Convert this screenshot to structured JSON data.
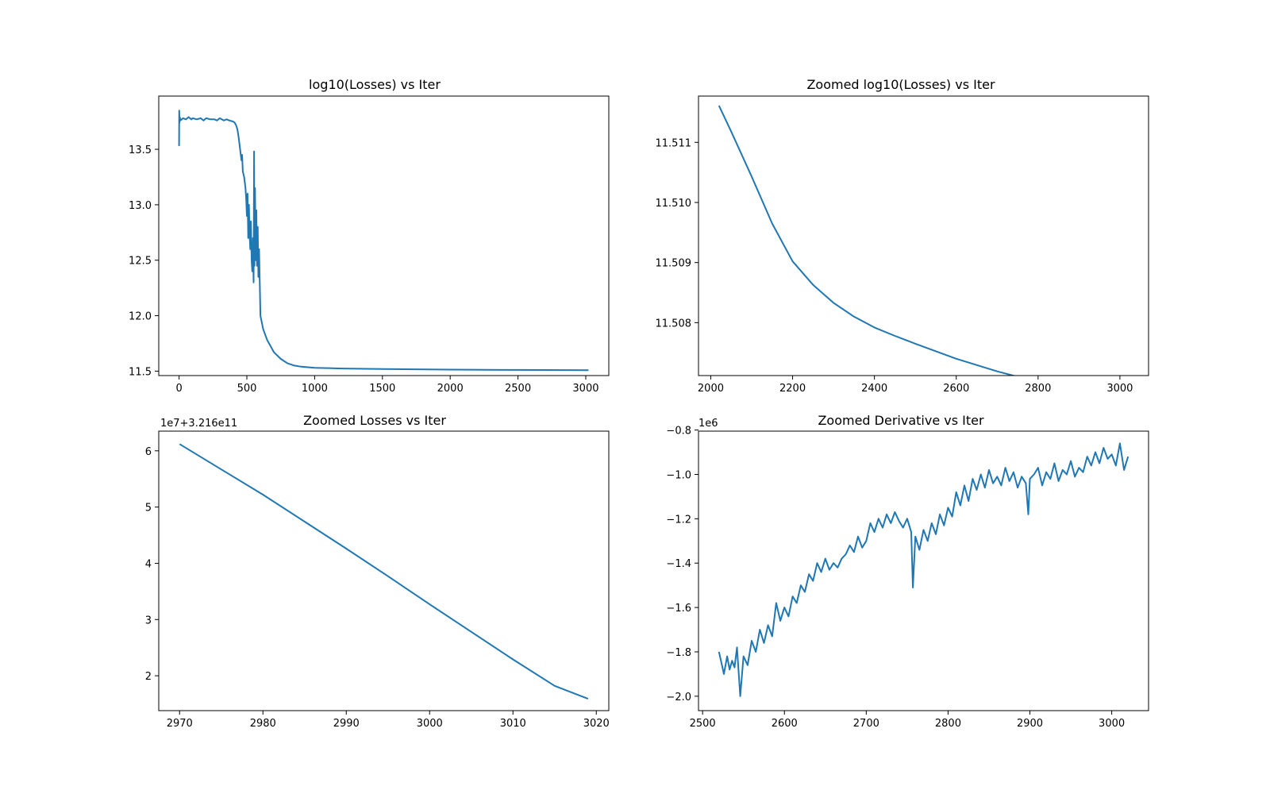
{
  "chart_data": [
    {
      "type": "line",
      "title": "log10(Losses) vs Iter",
      "xlabel": "",
      "ylabel": "",
      "offset_label": "",
      "xlim": [
        -150,
        3170
      ],
      "ylim": [
        11.46,
        13.98
      ],
      "xticks": [
        0,
        500,
        1000,
        1500,
        2000,
        2500,
        3000
      ],
      "xtick_labels": [
        "0",
        "500",
        "1000",
        "1500",
        "2000",
        "2500",
        "3000"
      ],
      "yticks": [
        11.5,
        12.0,
        12.5,
        13.0,
        13.5
      ],
      "ytick_labels": [
        "11.5",
        "12.0",
        "12.5",
        "13.0",
        "13.5"
      ],
      "series": [
        {
          "color": "#1f77b4",
          "x": [
            0,
            1,
            3,
            5,
            10,
            20,
            30,
            50,
            70,
            90,
            100,
            130,
            160,
            180,
            200,
            230,
            260,
            280,
            300,
            330,
            350,
            370,
            400,
            410,
            420,
            430,
            440,
            450,
            460,
            465,
            470,
            480,
            490,
            495,
            500,
            505,
            510,
            515,
            520,
            525,
            530,
            535,
            540,
            545,
            550,
            553,
            556,
            560,
            565,
            570,
            575,
            580,
            585,
            590,
            600,
            620,
            650,
            700,
            750,
            800,
            850,
            900,
            1000,
            1100,
            1200,
            1500,
            2000,
            2500,
            3020
          ],
          "y": [
            13.53,
            13.85,
            13.74,
            13.79,
            13.76,
            13.77,
            13.78,
            13.77,
            13.79,
            13.77,
            13.78,
            13.77,
            13.78,
            13.76,
            13.78,
            13.77,
            13.77,
            13.76,
            13.78,
            13.76,
            13.77,
            13.76,
            13.75,
            13.74,
            13.72,
            13.68,
            13.6,
            13.5,
            13.4,
            13.45,
            13.3,
            13.25,
            13.15,
            13.05,
            12.9,
            13.1,
            12.7,
            13.0,
            12.75,
            12.6,
            12.85,
            12.5,
            12.4,
            12.7,
            12.3,
            13.48,
            12.45,
            13.15,
            12.5,
            12.95,
            12.45,
            12.8,
            12.35,
            12.6,
            12.0,
            11.88,
            11.78,
            11.67,
            11.61,
            11.57,
            11.55,
            11.54,
            11.53,
            11.527,
            11.524,
            11.519,
            11.514,
            11.511,
            11.508
          ]
        }
      ]
    },
    {
      "type": "line",
      "title": "Zoomed log10(Losses) vs Iter",
      "xlabel": "",
      "ylabel": "",
      "offset_label": "",
      "xlim": [
        1970,
        3070
      ],
      "ylim": [
        11.50712,
        11.51177
      ],
      "xticks": [
        2000,
        2200,
        2400,
        2600,
        2800,
        3000
      ],
      "xtick_labels": [
        "2000",
        "2200",
        "2400",
        "2600",
        "2800",
        "3000"
      ],
      "yticks": [
        11.508,
        11.509,
        11.51,
        11.511
      ],
      "ytick_labels": [
        "11.508",
        "11.509",
        "11.510",
        "11.511"
      ],
      "series": [
        {
          "color": "#1f77b4",
          "x": [
            2020,
            2050,
            2100,
            2150,
            2200,
            2250,
            2300,
            2350,
            2400,
            2450,
            2500,
            2600,
            2700,
            2800,
            2900,
            3020
          ],
          "y": [
            11.51161,
            11.51118,
            11.51043,
            11.50965,
            11.50902,
            11.50863,
            11.50833,
            11.5081,
            11.50792,
            11.50778,
            11.50765,
            11.5074,
            11.50719,
            11.50701,
            11.50684,
            11.50664
          ]
        }
      ]
    },
    {
      "type": "line",
      "title": "Zoomed Losses vs Iter",
      "xlabel": "",
      "ylabel": "",
      "offset_label": "1e7+3.216e11",
      "xlim": [
        2967.5,
        3021.5
      ],
      "ylim": [
        1.38,
        6.35
      ],
      "xticks": [
        2970,
        2980,
        2990,
        3000,
        3010,
        3020
      ],
      "xtick_labels": [
        "2970",
        "2980",
        "2990",
        "3000",
        "3010",
        "3020"
      ],
      "yticks": [
        2,
        3,
        4,
        5,
        6
      ],
      "ytick_labels": [
        "2",
        "3",
        "4",
        "5",
        "6"
      ],
      "series": [
        {
          "color": "#1f77b4",
          "x": [
            2970,
            2975,
            2980,
            2985,
            2990,
            2995,
            3000,
            3005,
            3010,
            3015,
            3019
          ],
          "y": [
            6.12,
            5.67,
            5.22,
            4.74,
            4.26,
            3.77,
            3.27,
            2.78,
            2.29,
            1.82,
            1.59
          ]
        }
      ]
    },
    {
      "type": "line",
      "title": "Zoomed Derivative vs Iter",
      "xlabel": "",
      "ylabel": "",
      "offset_label": "1e6",
      "xlim": [
        2495,
        3045
      ],
      "ylim": [
        -2.065,
        -0.805
      ],
      "xticks": [
        2500,
        2600,
        2700,
        2800,
        2900,
        3000
      ],
      "xtick_labels": [
        "2500",
        "2600",
        "2700",
        "2800",
        "2900",
        "3000"
      ],
      "yticks": [
        -2.0,
        -1.8,
        -1.6,
        -1.4,
        -1.2,
        -1.0,
        -0.8
      ],
      "ytick_labels": [
        "−2.0",
        "−1.8",
        "−1.6",
        "−1.4",
        "−1.2",
        "−1.0",
        "−0.8"
      ],
      "series": [
        {
          "color": "#1f77b4",
          "x": [
            2520,
            2523,
            2526,
            2530,
            2533,
            2536,
            2539,
            2542,
            2546,
            2550,
            2555,
            2560,
            2565,
            2570,
            2575,
            2580,
            2585,
            2590,
            2595,
            2600,
            2605,
            2610,
            2615,
            2620,
            2625,
            2630,
            2635,
            2640,
            2645,
            2650,
            2655,
            2660,
            2665,
            2670,
            2675,
            2680,
            2685,
            2690,
            2695,
            2700,
            2705,
            2710,
            2715,
            2720,
            2725,
            2730,
            2735,
            2740,
            2745,
            2750,
            2755,
            2757,
            2760,
            2765,
            2770,
            2775,
            2780,
            2785,
            2790,
            2795,
            2800,
            2805,
            2810,
            2815,
            2820,
            2825,
            2830,
            2835,
            2840,
            2845,
            2850,
            2855,
            2860,
            2865,
            2870,
            2875,
            2880,
            2885,
            2890,
            2895,
            2898,
            2900,
            2905,
            2910,
            2915,
            2920,
            2925,
            2930,
            2935,
            2940,
            2945,
            2950,
            2955,
            2960,
            2965,
            2970,
            2975,
            2980,
            2985,
            2990,
            2995,
            3000,
            3005,
            3010,
            3015,
            3020
          ],
          "y": [
            -1.8,
            -1.85,
            -1.9,
            -1.82,
            -1.88,
            -1.84,
            -1.87,
            -1.78,
            -2.0,
            -1.82,
            -1.86,
            -1.75,
            -1.8,
            -1.7,
            -1.76,
            -1.68,
            -1.73,
            -1.58,
            -1.66,
            -1.6,
            -1.64,
            -1.55,
            -1.58,
            -1.5,
            -1.53,
            -1.45,
            -1.48,
            -1.4,
            -1.44,
            -1.38,
            -1.43,
            -1.4,
            -1.42,
            -1.38,
            -1.36,
            -1.32,
            -1.35,
            -1.28,
            -1.33,
            -1.3,
            -1.22,
            -1.26,
            -1.2,
            -1.24,
            -1.18,
            -1.22,
            -1.17,
            -1.21,
            -1.24,
            -1.2,
            -1.26,
            -1.51,
            -1.28,
            -1.34,
            -1.25,
            -1.3,
            -1.22,
            -1.27,
            -1.18,
            -1.23,
            -1.15,
            -1.19,
            -1.08,
            -1.14,
            -1.05,
            -1.12,
            -1.02,
            -1.07,
            -1.0,
            -1.06,
            -0.98,
            -1.04,
            -1.01,
            -1.05,
            -0.97,
            -1.03,
            -0.99,
            -1.06,
            -1.01,
            -1.04,
            -1.18,
            -1.02,
            -1.0,
            -0.97,
            -1.05,
            -0.99,
            -1.02,
            -0.95,
            -1.03,
            -0.98,
            -1.0,
            -0.94,
            -1.01,
            -0.97,
            -0.99,
            -0.92,
            -0.96,
            -0.9,
            -0.95,
            -0.88,
            -0.93,
            -0.91,
            -0.96,
            -0.86,
            -0.98,
            -0.92
          ]
        }
      ]
    }
  ]
}
